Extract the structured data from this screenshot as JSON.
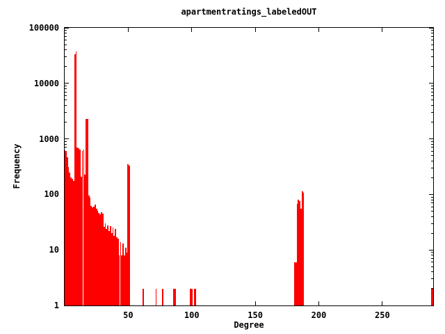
{
  "chart_data": {
    "type": "bar",
    "title": "apartmentratings_labeledOUT",
    "xlabel": "Degree",
    "ylabel": "Frequency",
    "x_scale": "linear",
    "y_scale": "log",
    "xlim": [
      0,
      290
    ],
    "ylim": [
      1,
      100000
    ],
    "x_ticks": [
      50,
      100,
      150,
      200,
      250
    ],
    "y_ticks": [
      1,
      10,
      100,
      1000,
      10000,
      100000
    ],
    "grid": false,
    "legend": "none",
    "bar_color": "#ff0000",
    "axis_color": "#000000",
    "background_color": "#ffffff",
    "points": [
      [
        0,
        620
      ],
      [
        1,
        600
      ],
      [
        2,
        470
      ],
      [
        3,
        310
      ],
      [
        4,
        250
      ],
      [
        5,
        205
      ],
      [
        6,
        190
      ],
      [
        7,
        175
      ],
      [
        8,
        33000
      ],
      [
        9,
        38000
      ],
      [
        10,
        700
      ],
      [
        11,
        680
      ],
      [
        12,
        640
      ],
      [
        13,
        210
      ],
      [
        14,
        600
      ],
      [
        15,
        650
      ],
      [
        16,
        230
      ],
      [
        17,
        2300
      ],
      [
        18,
        2300
      ],
      [
        19,
        95
      ],
      [
        20,
        88
      ],
      [
        21,
        62
      ],
      [
        22,
        58
      ],
      [
        23,
        60
      ],
      [
        24,
        66
      ],
      [
        25,
        55
      ],
      [
        26,
        50
      ],
      [
        27,
        46
      ],
      [
        28,
        44
      ],
      [
        29,
        48
      ],
      [
        30,
        45
      ],
      [
        31,
        26
      ],
      [
        32,
        30
      ],
      [
        33,
        24
      ],
      [
        34,
        28
      ],
      [
        35,
        22
      ],
      [
        36,
        27
      ],
      [
        37,
        20
      ],
      [
        38,
        25
      ],
      [
        39,
        18
      ],
      [
        40,
        24
      ],
      [
        41,
        17
      ],
      [
        42,
        16
      ],
      [
        43,
        8
      ],
      [
        44,
        14
      ],
      [
        45,
        8
      ],
      [
        46,
        13
      ],
      [
        47,
        8
      ],
      [
        48,
        11
      ],
      [
        49,
        9
      ],
      [
        50,
        350
      ],
      [
        51,
        330
      ],
      [
        62,
        2
      ],
      [
        72,
        2
      ],
      [
        77,
        2
      ],
      [
        86,
        2
      ],
      [
        87,
        2
      ],
      [
        99,
        2
      ],
      [
        100,
        2
      ],
      [
        102,
        2
      ],
      [
        103,
        2
      ],
      [
        181,
        6
      ],
      [
        182,
        6
      ],
      [
        183,
        68
      ],
      [
        184,
        80
      ],
      [
        185,
        75
      ],
      [
        186,
        55
      ],
      [
        187,
        115
      ],
      [
        188,
        108
      ],
      [
        289,
        2
      ],
      [
        290,
        2
      ]
    ]
  }
}
